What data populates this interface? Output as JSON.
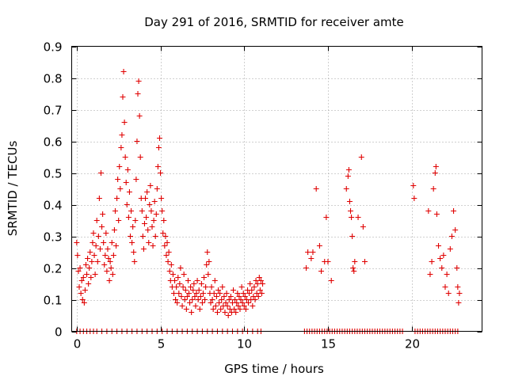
{
  "chart_data": {
    "type": "scatter",
    "title": "Day 291 of 2016, SRMTID for receiver amte",
    "xlabel": "GPS time / hours",
    "ylabel": "SRMTID / TECUs",
    "xlim": [
      -0.3,
      24.2
    ],
    "ylim": [
      0,
      0.9
    ],
    "x_ticks": [
      0,
      5,
      10,
      15,
      20
    ],
    "x_tick_labels": [
      "0",
      "5",
      "10",
      "15",
      "20"
    ],
    "y_ticks": [
      0,
      0.1,
      0.2,
      0.3,
      0.4,
      0.5,
      0.6,
      0.7,
      0.8,
      0.9
    ],
    "y_tick_labels": [
      "0",
      "0.1",
      "0.2",
      "0.3",
      "0.4",
      "0.5",
      "0.6",
      "0.7",
      "0.8",
      "0.9"
    ],
    "grid": true,
    "marker": "+",
    "color": "#e00000",
    "series": [
      {
        "name": "SRMTID",
        "points": [
          [
            0.0,
            0.28
          ],
          [
            0.05,
            0.24
          ],
          [
            0.1,
            0.19
          ],
          [
            0.15,
            0.14
          ],
          [
            0.2,
            0.2
          ],
          [
            0.25,
            0.12
          ],
          [
            0.3,
            0.16
          ],
          [
            0.35,
            0.1
          ],
          [
            0.4,
            0.17
          ],
          [
            0.45,
            0.09
          ],
          [
            0.5,
            0.13
          ],
          [
            0.55,
            0.21
          ],
          [
            0.6,
            0.18
          ],
          [
            0.65,
            0.23
          ],
          [
            0.7,
            0.15
          ],
          [
            0.75,
            0.2
          ],
          [
            0.8,
            0.25
          ],
          [
            0.85,
            0.17
          ],
          [
            0.9,
            0.22
          ],
          [
            0.95,
            0.28
          ],
          [
            1.0,
            0.31
          ],
          [
            1.05,
            0.24
          ],
          [
            1.1,
            0.18
          ],
          [
            1.15,
            0.27
          ],
          [
            1.2,
            0.35
          ],
          [
            1.25,
            0.22
          ],
          [
            1.3,
            0.3
          ],
          [
            1.35,
            0.42
          ],
          [
            1.4,
            0.26
          ],
          [
            1.45,
            0.5
          ],
          [
            1.5,
            0.33
          ],
          [
            1.55,
            0.37
          ],
          [
            1.6,
            0.28
          ],
          [
            1.65,
            0.21
          ],
          [
            1.7,
            0.24
          ],
          [
            1.75,
            0.31
          ],
          [
            1.8,
            0.19
          ],
          [
            1.85,
            0.26
          ],
          [
            1.9,
            0.23
          ],
          [
            1.95,
            0.16
          ],
          [
            2.0,
            0.22
          ],
          [
            2.05,
            0.2
          ],
          [
            2.1,
            0.28
          ],
          [
            2.15,
            0.18
          ],
          [
            2.2,
            0.24
          ],
          [
            2.25,
            0.32
          ],
          [
            2.3,
            0.38
          ],
          [
            2.35,
            0.27
          ],
          [
            2.4,
            0.42
          ],
          [
            2.45,
            0.48
          ],
          [
            2.5,
            0.35
          ],
          [
            2.55,
            0.52
          ],
          [
            2.6,
            0.45
          ],
          [
            2.65,
            0.58
          ],
          [
            2.7,
            0.62
          ],
          [
            2.75,
            0.74
          ],
          [
            2.8,
            0.82
          ],
          [
            2.85,
            0.66
          ],
          [
            2.9,
            0.55
          ],
          [
            2.95,
            0.47
          ],
          [
            3.0,
            0.4
          ],
          [
            3.05,
            0.51
          ],
          [
            3.1,
            0.36
          ],
          [
            3.15,
            0.44
          ],
          [
            3.2,
            0.3
          ],
          [
            3.25,
            0.38
          ],
          [
            3.3,
            0.28
          ],
          [
            3.35,
            0.33
          ],
          [
            3.4,
            0.25
          ],
          [
            3.45,
            0.22
          ],
          [
            3.5,
            0.35
          ],
          [
            3.55,
            0.48
          ],
          [
            3.6,
            0.6
          ],
          [
            3.65,
            0.75
          ],
          [
            3.7,
            0.79
          ],
          [
            3.75,
            0.68
          ],
          [
            3.8,
            0.55
          ],
          [
            3.85,
            0.42
          ],
          [
            3.9,
            0.38
          ],
          [
            3.95,
            0.3
          ],
          [
            4.0,
            0.26
          ],
          [
            4.05,
            0.34
          ],
          [
            4.1,
            0.42
          ],
          [
            4.15,
            0.36
          ],
          [
            4.2,
            0.44
          ],
          [
            4.25,
            0.32
          ],
          [
            4.3,
            0.28
          ],
          [
            4.35,
            0.4
          ],
          [
            4.4,
            0.46
          ],
          [
            4.45,
            0.38
          ],
          [
            4.5,
            0.33
          ],
          [
            4.55,
            0.27
          ],
          [
            4.6,
            0.35
          ],
          [
            4.65,
            0.41
          ],
          [
            4.7,
            0.3
          ],
          [
            4.75,
            0.37
          ],
          [
            4.8,
            0.45
          ],
          [
            4.85,
            0.52
          ],
          [
            4.9,
            0.58
          ],
          [
            4.95,
            0.61
          ],
          [
            5.0,
            0.5
          ],
          [
            5.05,
            0.42
          ],
          [
            5.1,
            0.38
          ],
          [
            5.15,
            0.31
          ],
          [
            5.2,
            0.35
          ],
          [
            5.25,
            0.27
          ],
          [
            5.3,
            0.3
          ],
          [
            5.35,
            0.24
          ],
          [
            5.4,
            0.28
          ],
          [
            5.45,
            0.22
          ],
          [
            5.5,
            0.25
          ],
          [
            5.55,
            0.19
          ],
          [
            5.6,
            0.16
          ],
          [
            5.65,
            0.21
          ],
          [
            5.7,
            0.14
          ],
          [
            5.75,
            0.18
          ],
          [
            5.8,
            0.12
          ],
          [
            5.85,
            0.16
          ],
          [
            5.9,
            0.1
          ],
          [
            5.95,
            0.14
          ],
          [
            6.0,
            0.09
          ],
          [
            6.05,
            0.17
          ],
          [
            6.1,
            0.12
          ],
          [
            6.15,
            0.15
          ],
          [
            6.2,
            0.2
          ],
          [
            6.25,
            0.11
          ],
          [
            6.3,
            0.08
          ],
          [
            6.35,
            0.14
          ],
          [
            6.4,
            0.18
          ],
          [
            6.45,
            0.1
          ],
          [
            6.5,
            0.13
          ],
          [
            6.55,
            0.07
          ],
          [
            6.6,
            0.11
          ],
          [
            6.65,
            0.16
          ],
          [
            6.7,
            0.12
          ],
          [
            6.75,
            0.09
          ],
          [
            6.8,
            0.14
          ],
          [
            6.85,
            0.06
          ],
          [
            6.9,
            0.1
          ],
          [
            6.95,
            0.13
          ],
          [
            7.0,
            0.15
          ],
          [
            7.05,
            0.11
          ],
          [
            7.1,
            0.08
          ],
          [
            7.15,
            0.12
          ],
          [
            7.2,
            0.16
          ],
          [
            7.25,
            0.1
          ],
          [
            7.3,
            0.13
          ],
          [
            7.35,
            0.07
          ],
          [
            7.4,
            0.11
          ],
          [
            7.45,
            0.15
          ],
          [
            7.5,
            0.09
          ],
          [
            7.55,
            0.12
          ],
          [
            7.6,
            0.17
          ],
          [
            7.65,
            0.1
          ],
          [
            7.7,
            0.14
          ],
          [
            7.75,
            0.21
          ],
          [
            7.8,
            0.25
          ],
          [
            7.85,
            0.18
          ],
          [
            7.9,
            0.22
          ],
          [
            7.95,
            0.12
          ],
          [
            8.0,
            0.09
          ],
          [
            8.05,
            0.14
          ],
          [
            8.1,
            0.1
          ],
          [
            8.15,
            0.07
          ],
          [
            8.2,
            0.12
          ],
          [
            8.25,
            0.16
          ],
          [
            8.3,
            0.08
          ],
          [
            8.35,
            0.11
          ],
          [
            8.4,
            0.06
          ],
          [
            8.45,
            0.13
          ],
          [
            8.5,
            0.09
          ],
          [
            8.55,
            0.12
          ],
          [
            8.6,
            0.07
          ],
          [
            8.65,
            0.1
          ],
          [
            8.7,
            0.14
          ],
          [
            8.75,
            0.08
          ],
          [
            8.8,
            0.11
          ],
          [
            8.85,
            0.06
          ],
          [
            8.9,
            0.09
          ],
          [
            8.95,
            0.12
          ],
          [
            9.0,
            0.08
          ],
          [
            9.05,
            0.05
          ],
          [
            9.1,
            0.1
          ],
          [
            9.15,
            0.07
          ],
          [
            9.2,
            0.11
          ],
          [
            9.25,
            0.06
          ],
          [
            9.3,
            0.09
          ],
          [
            9.35,
            0.13
          ],
          [
            9.4,
            0.07
          ],
          [
            9.45,
            0.1
          ],
          [
            9.5,
            0.06
          ],
          [
            9.55,
            0.09
          ],
          [
            9.6,
            0.12
          ],
          [
            9.65,
            0.08
          ],
          [
            9.7,
            0.11
          ],
          [
            9.75,
            0.07
          ],
          [
            9.8,
            0.1
          ],
          [
            9.85,
            0.14
          ],
          [
            9.9,
            0.09
          ],
          [
            9.95,
            0.12
          ],
          [
            10.0,
            0.08
          ],
          [
            10.05,
            0.11
          ],
          [
            10.1,
            0.07
          ],
          [
            10.15,
            0.1
          ],
          [
            10.2,
            0.13
          ],
          [
            10.25,
            0.09
          ],
          [
            10.3,
            0.12
          ],
          [
            10.35,
            0.15
          ],
          [
            10.4,
            0.1
          ],
          [
            10.45,
            0.13
          ],
          [
            10.5,
            0.08
          ],
          [
            10.55,
            0.11
          ],
          [
            10.6,
            0.14
          ],
          [
            10.65,
            0.1
          ],
          [
            10.7,
            0.16
          ],
          [
            10.75,
            0.12
          ],
          [
            10.8,
            0.15
          ],
          [
            10.85,
            0.11
          ],
          [
            10.9,
            0.17
          ],
          [
            10.95,
            0.13
          ],
          [
            11.0,
            0.16
          ],
          [
            11.05,
            0.12
          ],
          [
            11.1,
            0.15
          ],
          [
            13.7,
            0.2
          ],
          [
            13.8,
            0.25
          ],
          [
            14.0,
            0.23
          ],
          [
            14.1,
            0.25
          ],
          [
            14.3,
            0.45
          ],
          [
            14.5,
            0.27
          ],
          [
            14.6,
            0.19
          ],
          [
            14.8,
            0.22
          ],
          [
            14.9,
            0.36
          ],
          [
            15.0,
            0.22
          ],
          [
            15.2,
            0.16
          ],
          [
            16.1,
            0.45
          ],
          [
            16.2,
            0.49
          ],
          [
            16.25,
            0.51
          ],
          [
            16.3,
            0.41
          ],
          [
            16.35,
            0.38
          ],
          [
            16.4,
            0.36
          ],
          [
            16.45,
            0.3
          ],
          [
            16.5,
            0.2
          ],
          [
            16.55,
            0.19
          ],
          [
            16.6,
            0.22
          ],
          [
            16.8,
            0.36
          ],
          [
            17.0,
            0.55
          ],
          [
            17.1,
            0.33
          ],
          [
            17.2,
            0.22
          ],
          [
            20.1,
            0.46
          ],
          [
            20.15,
            0.42
          ],
          [
            21.0,
            0.38
          ],
          [
            21.1,
            0.18
          ],
          [
            21.2,
            0.22
          ],
          [
            21.3,
            0.45
          ],
          [
            21.4,
            0.5
          ],
          [
            21.45,
            0.52
          ],
          [
            21.5,
            0.37
          ],
          [
            21.6,
            0.27
          ],
          [
            21.7,
            0.23
          ],
          [
            21.8,
            0.2
          ],
          [
            21.9,
            0.24
          ],
          [
            22.0,
            0.14
          ],
          [
            22.1,
            0.18
          ],
          [
            22.2,
            0.12
          ],
          [
            22.3,
            0.26
          ],
          [
            22.4,
            0.3
          ],
          [
            22.5,
            0.38
          ],
          [
            22.6,
            0.32
          ],
          [
            22.7,
            0.2
          ],
          [
            22.75,
            0.14
          ],
          [
            22.8,
            0.09
          ],
          [
            22.85,
            0.12
          ]
        ],
        "zero_points_x": [
          0.0,
          0.2,
          0.4,
          0.6,
          0.8,
          1.0,
          1.2,
          1.5,
          1.8,
          2.1,
          2.4,
          2.7,
          3.0,
          3.3,
          3.6,
          3.9,
          4.2,
          4.5,
          4.8,
          5.1,
          5.4,
          5.7,
          6.0,
          6.3,
          6.6,
          6.9,
          7.2,
          7.5,
          7.8,
          8.1,
          8.4,
          8.7,
          9.0,
          9.3,
          9.6,
          9.9,
          10.2,
          10.5,
          10.8,
          11.0,
          13.6,
          13.75,
          13.9,
          14.05,
          14.2,
          14.35,
          14.5,
          14.65,
          14.8,
          14.95,
          15.1,
          15.25,
          15.4,
          15.55,
          15.7,
          15.85,
          16.0,
          16.15,
          16.3,
          16.45,
          16.6,
          16.75,
          16.9,
          17.05,
          17.2,
          17.35,
          17.5,
          17.65,
          17.8,
          17.95,
          18.1,
          18.25,
          18.4,
          18.55,
          18.7,
          18.85,
          19.0,
          19.15,
          19.3,
          19.45,
          20.2,
          20.35,
          20.5,
          20.65,
          20.8,
          20.95,
          21.1,
          21.25,
          21.4,
          21.55,
          21.7,
          21.85,
          22.0,
          22.15,
          22.3,
          22.45,
          22.6,
          22.75
        ]
      }
    ]
  }
}
